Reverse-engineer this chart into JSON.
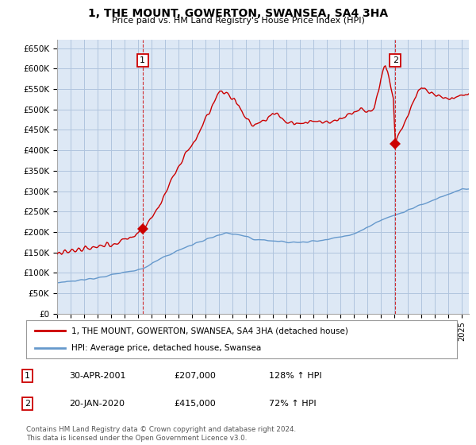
{
  "title": "1, THE MOUNT, GOWERTON, SWANSEA, SA4 3HA",
  "subtitle": "Price paid vs. HM Land Registry's House Price Index (HPI)",
  "ylim": [
    0,
    670000
  ],
  "yticks": [
    0,
    50000,
    100000,
    150000,
    200000,
    250000,
    300000,
    350000,
    400000,
    450000,
    500000,
    550000,
    600000,
    650000
  ],
  "ytick_labels": [
    "£0",
    "£50K",
    "£100K",
    "£150K",
    "£200K",
    "£250K",
    "£300K",
    "£350K",
    "£400K",
    "£450K",
    "£500K",
    "£550K",
    "£600K",
    "£650K"
  ],
  "background_color": "#ffffff",
  "chart_bg_color": "#dde8f5",
  "grid_color": "#b0c4de",
  "red_line_color": "#cc0000",
  "blue_line_color": "#6699cc",
  "transaction1_date": 2001.33,
  "transaction1_price": 207000,
  "transaction2_date": 2020.05,
  "transaction2_price": 415000,
  "vline_color": "#cc0000",
  "legend_label_red": "1, THE MOUNT, GOWERTON, SWANSEA, SA4 3HA (detached house)",
  "legend_label_blue": "HPI: Average price, detached house, Swansea",
  "table_row1": [
    "1",
    "30-APR-2001",
    "£207,000",
    "128% ↑ HPI"
  ],
  "table_row2": [
    "2",
    "20-JAN-2020",
    "£415,000",
    "72% ↑ HPI"
  ],
  "footer": "Contains HM Land Registry data © Crown copyright and database right 2024.\nThis data is licensed under the Open Government Licence v3.0.",
  "xmin": 1995.0,
  "xmax": 2025.5
}
